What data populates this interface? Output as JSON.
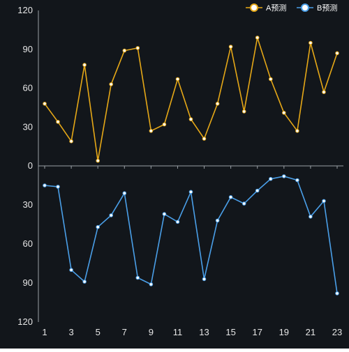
{
  "chart_data": {
    "type": "line",
    "layout": "two stacked panels sharing x axis; bottom panel y axis inverted",
    "background_color": "#12161b",
    "x": [
      1,
      2,
      3,
      4,
      5,
      6,
      7,
      8,
      9,
      10,
      11,
      12,
      13,
      14,
      15,
      16,
      17,
      18,
      19,
      20,
      21,
      22,
      23
    ],
    "x_tick_labels": [
      "1",
      "3",
      "5",
      "7",
      "9",
      "11",
      "13",
      "15",
      "17",
      "19",
      "21",
      "23"
    ],
    "legend": {
      "position": "top-right"
    },
    "grid": false,
    "panels": [
      {
        "position": "top",
        "ylim": [
          0,
          120
        ],
        "y_tick_labels": [
          "120",
          "90",
          "60",
          "30",
          "0"
        ],
        "series": [
          {
            "name": "A预测",
            "color": "#e6a817",
            "values": [
              48,
              34,
              19,
              78,
              4,
              63,
              89,
              91,
              27,
              32,
              67,
              36,
              21,
              48,
              92,
              42,
              99,
              67,
              41,
              27,
              95,
              57,
              87
            ]
          }
        ]
      },
      {
        "position": "bottom",
        "ylim": [
          0,
          120
        ],
        "y_inverted": true,
        "y_tick_labels": [
          "30",
          "60",
          "90",
          "120"
        ],
        "series": [
          {
            "name": "B预测",
            "color": "#4a9fe8",
            "values": [
              15,
              16,
              80,
              89,
              47,
              38,
              21,
              86,
              91,
              37,
              43,
              20,
              87,
              42,
              24,
              29,
              19,
              10,
              8,
              11,
              39,
              27,
              98
            ]
          }
        ]
      }
    ]
  }
}
